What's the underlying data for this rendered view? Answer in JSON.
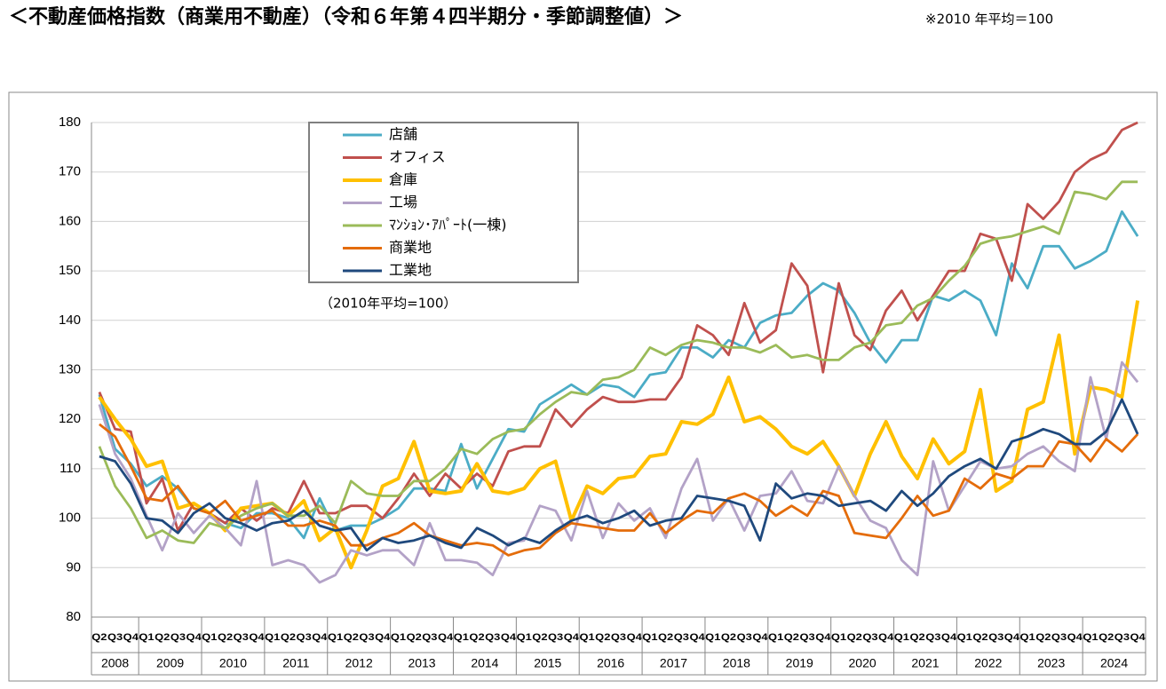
{
  "chart_data": {
    "type": "line",
    "title": "＜不動産価格指数（商業用不動産）（令和６年第４四半期分・季節調整値）＞",
    "note": "※2010 年平均＝100",
    "annotation": "（2010年平均=100）",
    "categories": [
      "Q2",
      "Q3",
      "Q4",
      "Q1",
      "Q2",
      "Q3",
      "Q4",
      "Q1",
      "Q2",
      "Q3",
      "Q4",
      "Q1",
      "Q2",
      "Q3",
      "Q4",
      "Q1",
      "Q2",
      "Q3",
      "Q4",
      "Q1",
      "Q2",
      "Q3",
      "Q4",
      "Q1",
      "Q2",
      "Q3",
      "Q4",
      "Q1",
      "Q2",
      "Q3",
      "Q4",
      "Q1",
      "Q2",
      "Q3",
      "Q4",
      "Q1",
      "Q2",
      "Q3",
      "Q4",
      "Q1",
      "Q2",
      "Q3",
      "Q4",
      "Q1",
      "Q2",
      "Q3",
      "Q4",
      "Q1",
      "Q2",
      "Q3",
      "Q4",
      "Q1",
      "Q2",
      "Q3",
      "Q4",
      "Q1",
      "Q2",
      "Q3",
      "Q4",
      "Q1",
      "Q2",
      "Q3",
      "Q4",
      "Q1",
      "Q2",
      "Q3",
      "Q4"
    ],
    "years": [
      "2008",
      "2009",
      "2010",
      "2011",
      "2012",
      "2013",
      "2014",
      "2015",
      "2016",
      "2017",
      "2018",
      "2019",
      "2020",
      "2021",
      "2022",
      "2023",
      "2024"
    ],
    "ylim": [
      80,
      180
    ],
    "yticks": [
      80,
      90,
      100,
      110,
      120,
      130,
      140,
      150,
      160,
      170,
      180
    ],
    "grid": true,
    "legend": "top-left",
    "series": [
      {
        "name": "店舗",
        "color": "#4bacc6",
        "values": [
          125,
          114,
          111,
          106.5,
          108.5,
          106,
          102,
          101,
          99,
          98,
          101,
          101,
          100,
          96,
          104,
          97.5,
          98.5,
          98.5,
          100,
          102,
          106,
          106,
          105.5,
          115,
          106,
          112,
          118,
          117.5,
          123,
          125,
          127,
          125,
          127,
          126.5,
          124.5,
          129,
          129.5,
          134.5,
          134.5,
          132.5,
          136,
          134.5,
          139.5,
          141,
          141.5,
          145,
          147.5,
          146,
          141.5,
          135.5,
          131.5,
          136,
          136,
          145,
          144,
          146,
          144,
          137,
          151.5,
          146.5,
          155,
          155,
          150.5,
          152,
          154,
          162,
          157
        ]
      },
      {
        "name": "オフィス",
        "color": "#c0504d",
        "values": [
          125.5,
          118,
          117.5,
          103,
          108,
          97.5,
          103,
          101,
          99,
          102,
          99.5,
          102,
          101,
          107.5,
          101,
          101,
          102.5,
          102.5,
          100,
          104,
          109,
          104.5,
          109,
          106,
          109,
          106.5,
          113.5,
          114.5,
          114.5,
          122,
          118.5,
          122,
          124.5,
          123.5,
          123.5,
          124,
          124,
          128.5,
          139,
          137,
          133,
          143.5,
          135.5,
          138,
          151.5,
          147,
          129.5,
          147.5,
          137,
          134,
          142,
          146,
          140,
          145,
          150,
          150,
          157.5,
          156.5,
          148,
          163.5,
          160.5,
          164,
          170,
          172.5,
          174,
          178.5,
          180
        ]
      },
      {
        "name": "倉庫",
        "color": "#ffc000",
        "values": [
          124.5,
          120,
          116,
          110.5,
          111.5,
          102,
          103,
          101,
          97.5,
          102,
          102.5,
          103,
          100.5,
          103.5,
          95.5,
          98,
          90,
          97.5,
          106.5,
          108,
          115.5,
          105.5,
          105,
          105.5,
          111,
          105.5,
          105,
          106,
          110,
          111.5,
          99.5,
          106.5,
          105,
          108,
          108.5,
          112.5,
          113,
          119.5,
          119,
          121,
          128.5,
          119.5,
          120.5,
          118,
          114.5,
          113,
          115.5,
          110.5,
          104.5,
          113,
          119.5,
          112.5,
          108,
          116,
          111,
          113.5,
          126,
          105.5,
          107.5,
          122,
          123.5,
          137,
          113,
          126.5,
          126,
          124.5,
          144
        ]
      },
      {
        "name": "工場",
        "color": "#b3a2c7",
        "values": [
          123,
          113,
          108,
          100.5,
          93.5,
          101,
          97,
          100.5,
          98,
          94.5,
          107.5,
          90.5,
          91.5,
          90.5,
          87,
          88.5,
          93.5,
          92.5,
          93.5,
          93.5,
          90.5,
          99,
          91.5,
          91.5,
          91,
          88.5,
          95,
          95.5,
          102.5,
          101.5,
          95.5,
          105.5,
          96,
          103,
          99.5,
          102,
          96,
          106,
          112,
          99.5,
          104,
          97.5,
          104.5,
          105,
          109.5,
          103.5,
          103,
          110.5,
          104.5,
          99.5,
          98,
          91.5,
          88.5,
          111.5,
          101.5,
          106.5,
          111.5,
          110,
          110.5,
          113,
          114.5,
          111.5,
          109.5,
          128.5,
          116,
          131.5,
          127.5
        ]
      },
      {
        "name": "ﾏﾝｼｮﾝ･ｱﾊﾟｰﾄ(一棟)",
        "color": "#9bbb59",
        "values": [
          114.5,
          106.5,
          102,
          96,
          97.5,
          95.5,
          95,
          99,
          98,
          100.5,
          102,
          103,
          100.5,
          100.5,
          102.5,
          99,
          107.5,
          105,
          104.5,
          104.5,
          107.5,
          107.5,
          110,
          114,
          113,
          116,
          117.5,
          118,
          121,
          123.5,
          125.5,
          125,
          128,
          128.5,
          130,
          134.5,
          133,
          135,
          136,
          135.5,
          134.5,
          134.5,
          133.5,
          135,
          132.5,
          133,
          132,
          132,
          134.5,
          135.5,
          139,
          139.5,
          143,
          144.5,
          148,
          151,
          155.5,
          156.5,
          157,
          158,
          159,
          157.5,
          166,
          165.5,
          164.5,
          168,
          168
        ]
      },
      {
        "name": "商業地",
        "color": "#e46c0a",
        "values": [
          119,
          116.5,
          110.5,
          104,
          103.5,
          106.5,
          102,
          101,
          103.5,
          99.5,
          100.5,
          101.5,
          98.5,
          98.5,
          99.5,
          98.5,
          94.5,
          94.5,
          96,
          97,
          99,
          96.5,
          95.5,
          94.5,
          95,
          94.5,
          92.5,
          93.5,
          94,
          97,
          99,
          98.5,
          98,
          97.5,
          97.5,
          101,
          97,
          99.5,
          101.5,
          101,
          104,
          105,
          103.5,
          100.5,
          102.5,
          100.5,
          105.5,
          104.5,
          97,
          96.5,
          96,
          100,
          104.5,
          100.5,
          101.5,
          108,
          106,
          109,
          108,
          110.5,
          110.5,
          115.5,
          115,
          111.5,
          116,
          113.5,
          117
        ]
      },
      {
        "name": "工業地",
        "color": "#1f497d",
        "values": [
          112.5,
          111.5,
          107,
          100,
          99.5,
          97,
          101,
          103,
          100,
          99,
          97.5,
          99,
          99.5,
          101.5,
          98.5,
          97.5,
          98,
          93.5,
          96,
          95,
          95.5,
          96.5,
          95,
          94,
          98,
          96.5,
          94.5,
          96,
          95,
          97.5,
          99.5,
          100.5,
          99,
          100,
          101.5,
          98.5,
          99.5,
          100,
          104.5,
          104,
          103.5,
          102.5,
          95.5,
          107,
          104,
          105,
          104.5,
          102.5,
          103,
          103.5,
          101.5,
          105.5,
          102.5,
          105,
          108.5,
          110.5,
          112,
          110,
          115.5,
          116.5,
          118,
          117,
          115,
          115,
          117.5,
          124,
          117
        ]
      }
    ]
  }
}
